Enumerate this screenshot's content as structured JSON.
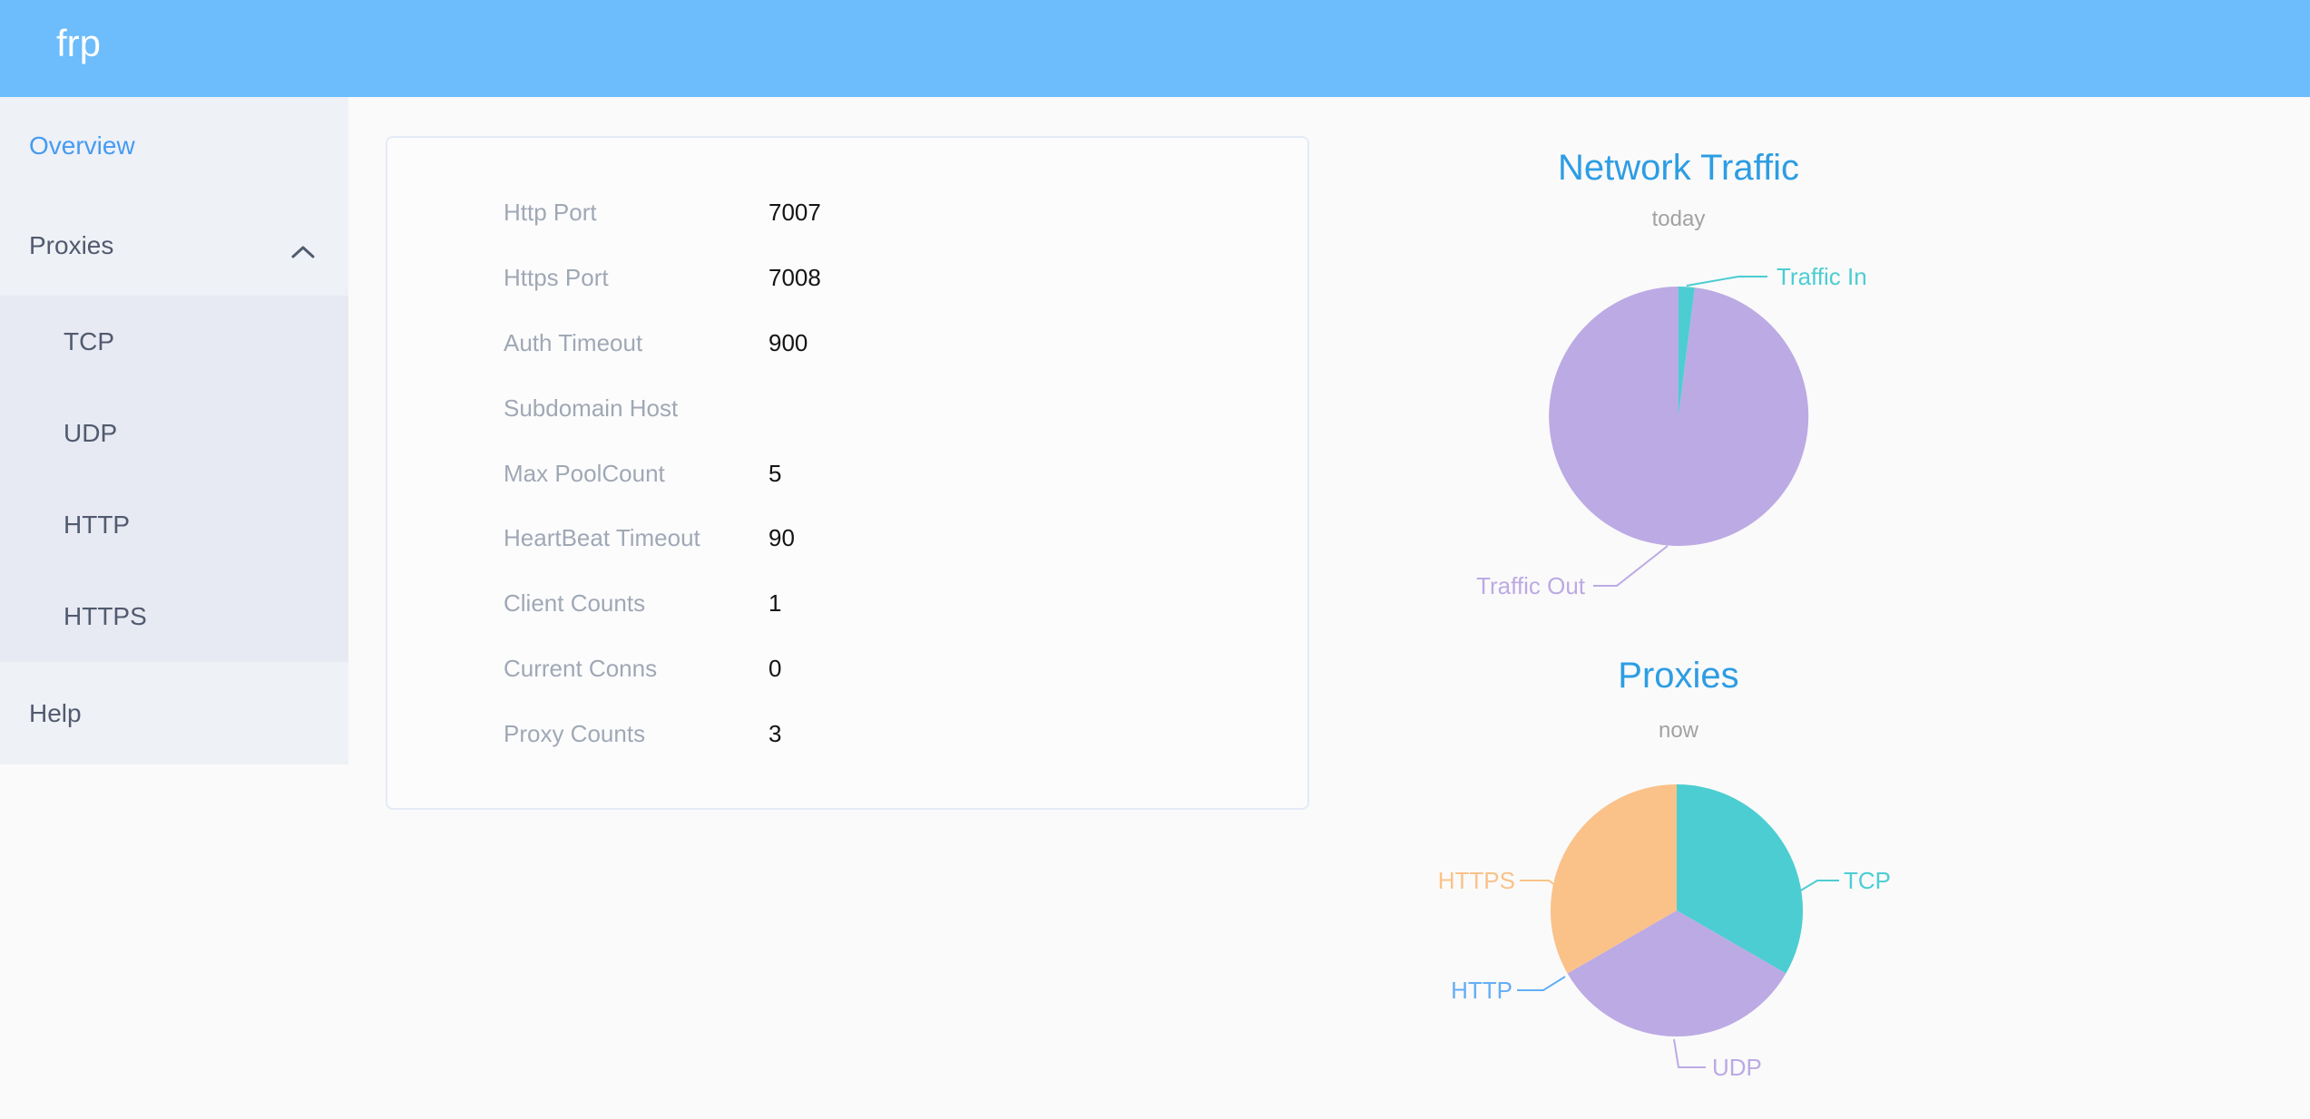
{
  "header": {
    "logo": "frp"
  },
  "sidebar": {
    "items": [
      {
        "label": "Overview",
        "type": "item",
        "active": true
      },
      {
        "label": "Proxies",
        "type": "submenu-header",
        "expanded": true
      },
      {
        "label": "TCP",
        "type": "subitem"
      },
      {
        "label": "UDP",
        "type": "subitem"
      },
      {
        "label": "HTTP",
        "type": "subitem"
      },
      {
        "label": "HTTPS",
        "type": "subitem"
      },
      {
        "label": "Help",
        "type": "item",
        "active": false
      }
    ]
  },
  "server_info": {
    "rows": [
      {
        "label": "Http Port",
        "value": "7007"
      },
      {
        "label": "Https Port",
        "value": "7008"
      },
      {
        "label": "Auth Timeout",
        "value": "900"
      },
      {
        "label": "Subdomain Host",
        "value": ""
      },
      {
        "label": "Max PoolCount",
        "value": "5"
      },
      {
        "label": "HeartBeat Timeout",
        "value": "90"
      },
      {
        "label": "Client Counts",
        "value": "1"
      },
      {
        "label": "Current Conns",
        "value": "0"
      },
      {
        "label": "Proxy Counts",
        "value": "3"
      }
    ]
  },
  "chart_data": [
    {
      "type": "pie",
      "title": "Network Traffic",
      "subtitle": "today",
      "labels": [
        "Traffic In",
        "Traffic Out"
      ],
      "values": [
        2,
        98
      ],
      "unit": "percent",
      "colors": [
        "#4ccdd2",
        "#bcaae4"
      ],
      "legend_position": "labels-with-leader-lines"
    },
    {
      "type": "pie",
      "title": "Proxies",
      "subtitle": "now",
      "labels": [
        "TCP",
        "UDP",
        "HTTP",
        "HTTPS"
      ],
      "values": [
        1,
        1,
        0,
        1
      ],
      "unit": "count",
      "colors": [
        "#4ccdd2",
        "#bcaae4",
        "#64aef5",
        "#fac289"
      ],
      "legend_position": "labels-with-leader-lines"
    }
  ],
  "colors": {
    "header_bg": "#6dbcfb",
    "sidebar_bg": "#eef1f6",
    "submenu_bg": "#e7eaf3",
    "sidebar_text": "#515a6e",
    "active_menu": "#459bf2",
    "chart_title": "#2d9de3",
    "subtitle_gray": "#a2a2a2",
    "card_label": "#a0a8b5",
    "card_value": "#141414",
    "teal": "#4ccdd2",
    "purple": "#bcaae4",
    "orange": "#fac289",
    "http_blue": "#64aef5"
  }
}
